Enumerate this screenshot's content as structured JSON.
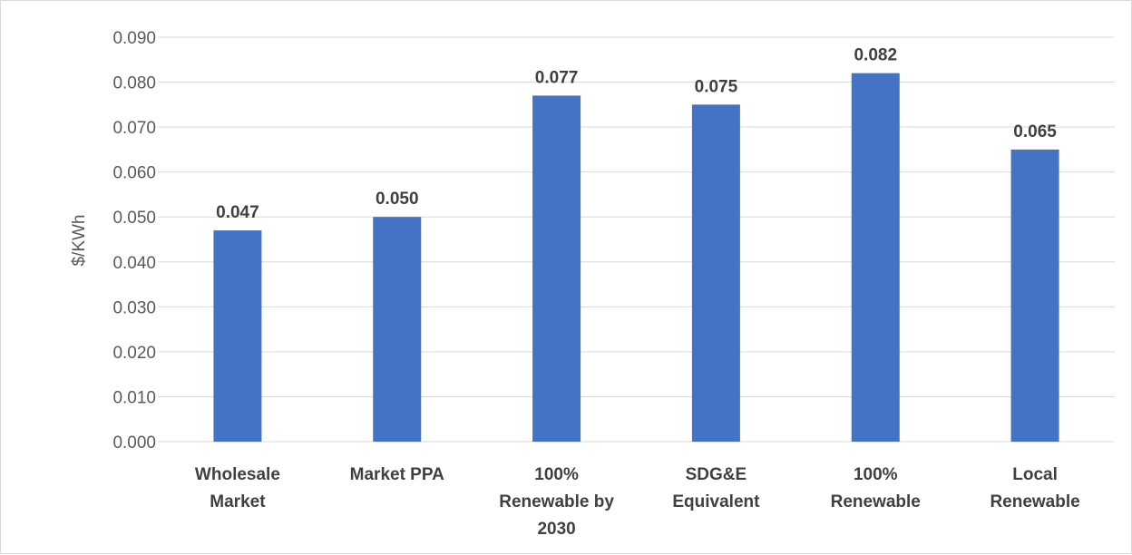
{
  "chart_data": {
    "type": "bar",
    "title": "",
    "xlabel": "",
    "ylabel": "$/KWh",
    "ylim": [
      0,
      0.09
    ],
    "ytick_step": 0.01,
    "ytick_labels": [
      "0.000",
      "0.010",
      "0.020",
      "0.030",
      "0.040",
      "0.050",
      "0.060",
      "0.070",
      "0.080",
      "0.090"
    ],
    "grid": true,
    "legend": "none",
    "categories": [
      [
        "Wholesale",
        "Market"
      ],
      [
        "Market PPA"
      ],
      [
        "100%",
        "Renewable by",
        "2030"
      ],
      [
        "SDG&E",
        "Equivalent"
      ],
      [
        "100%",
        "Renewable"
      ],
      [
        "Local",
        "Renewable"
      ]
    ],
    "series": [
      {
        "values": [
          0.047,
          0.05,
          0.077,
          0.075,
          0.082,
          0.065
        ],
        "labels": [
          "0.047",
          "0.050",
          "0.077",
          "0.075",
          "0.082",
          "0.065"
        ],
        "color": "#4472c4"
      }
    ]
  }
}
